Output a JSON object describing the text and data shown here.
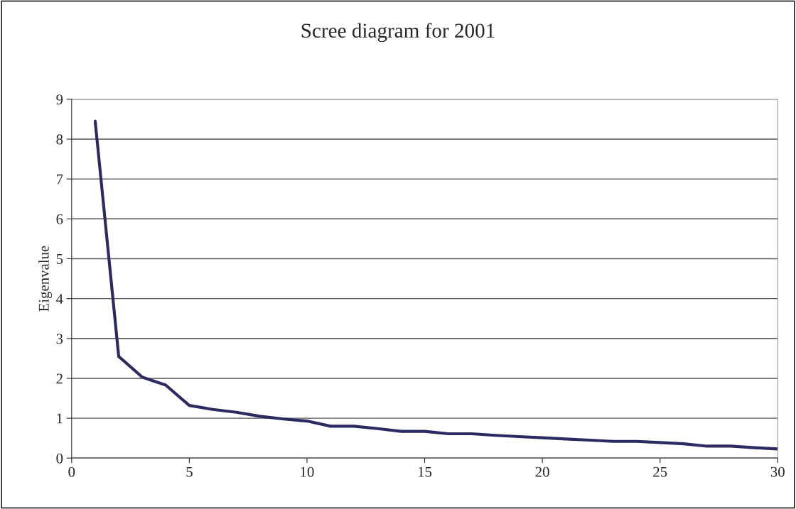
{
  "chart_data": {
    "type": "line",
    "title": "Scree diagram for 2001",
    "ylabel": "Eigenvalue",
    "x": [
      1,
      2,
      3,
      4,
      5,
      6,
      7,
      8,
      9,
      10,
      11,
      12,
      13,
      14,
      15,
      16,
      17,
      18,
      19,
      20,
      21,
      22,
      23,
      24,
      25,
      26,
      27,
      28,
      29,
      30
    ],
    "series": [
      {
        "color": "#2b2b62",
        "values": [
          8.45,
          2.55,
          2.03,
          1.83,
          1.32,
          1.22,
          1.15,
          1.05,
          0.98,
          0.93,
          0.8,
          0.8,
          0.74,
          0.67,
          0.67,
          0.61,
          0.61,
          0.57,
          0.54,
          0.51,
          0.48,
          0.45,
          0.42,
          0.42,
          0.39,
          0.36,
          0.3,
          0.3,
          0.26,
          0.23
        ]
      }
    ],
    "xlim": [
      0,
      30
    ],
    "xticks": [
      0,
      5,
      10,
      15,
      20,
      25,
      30
    ],
    "ylim": [
      0,
      9
    ],
    "yticks": [
      0,
      1,
      2,
      3,
      4,
      5,
      6,
      7,
      8,
      9
    ],
    "grid": "y",
    "marker": "none",
    "line_style": "solid"
  }
}
